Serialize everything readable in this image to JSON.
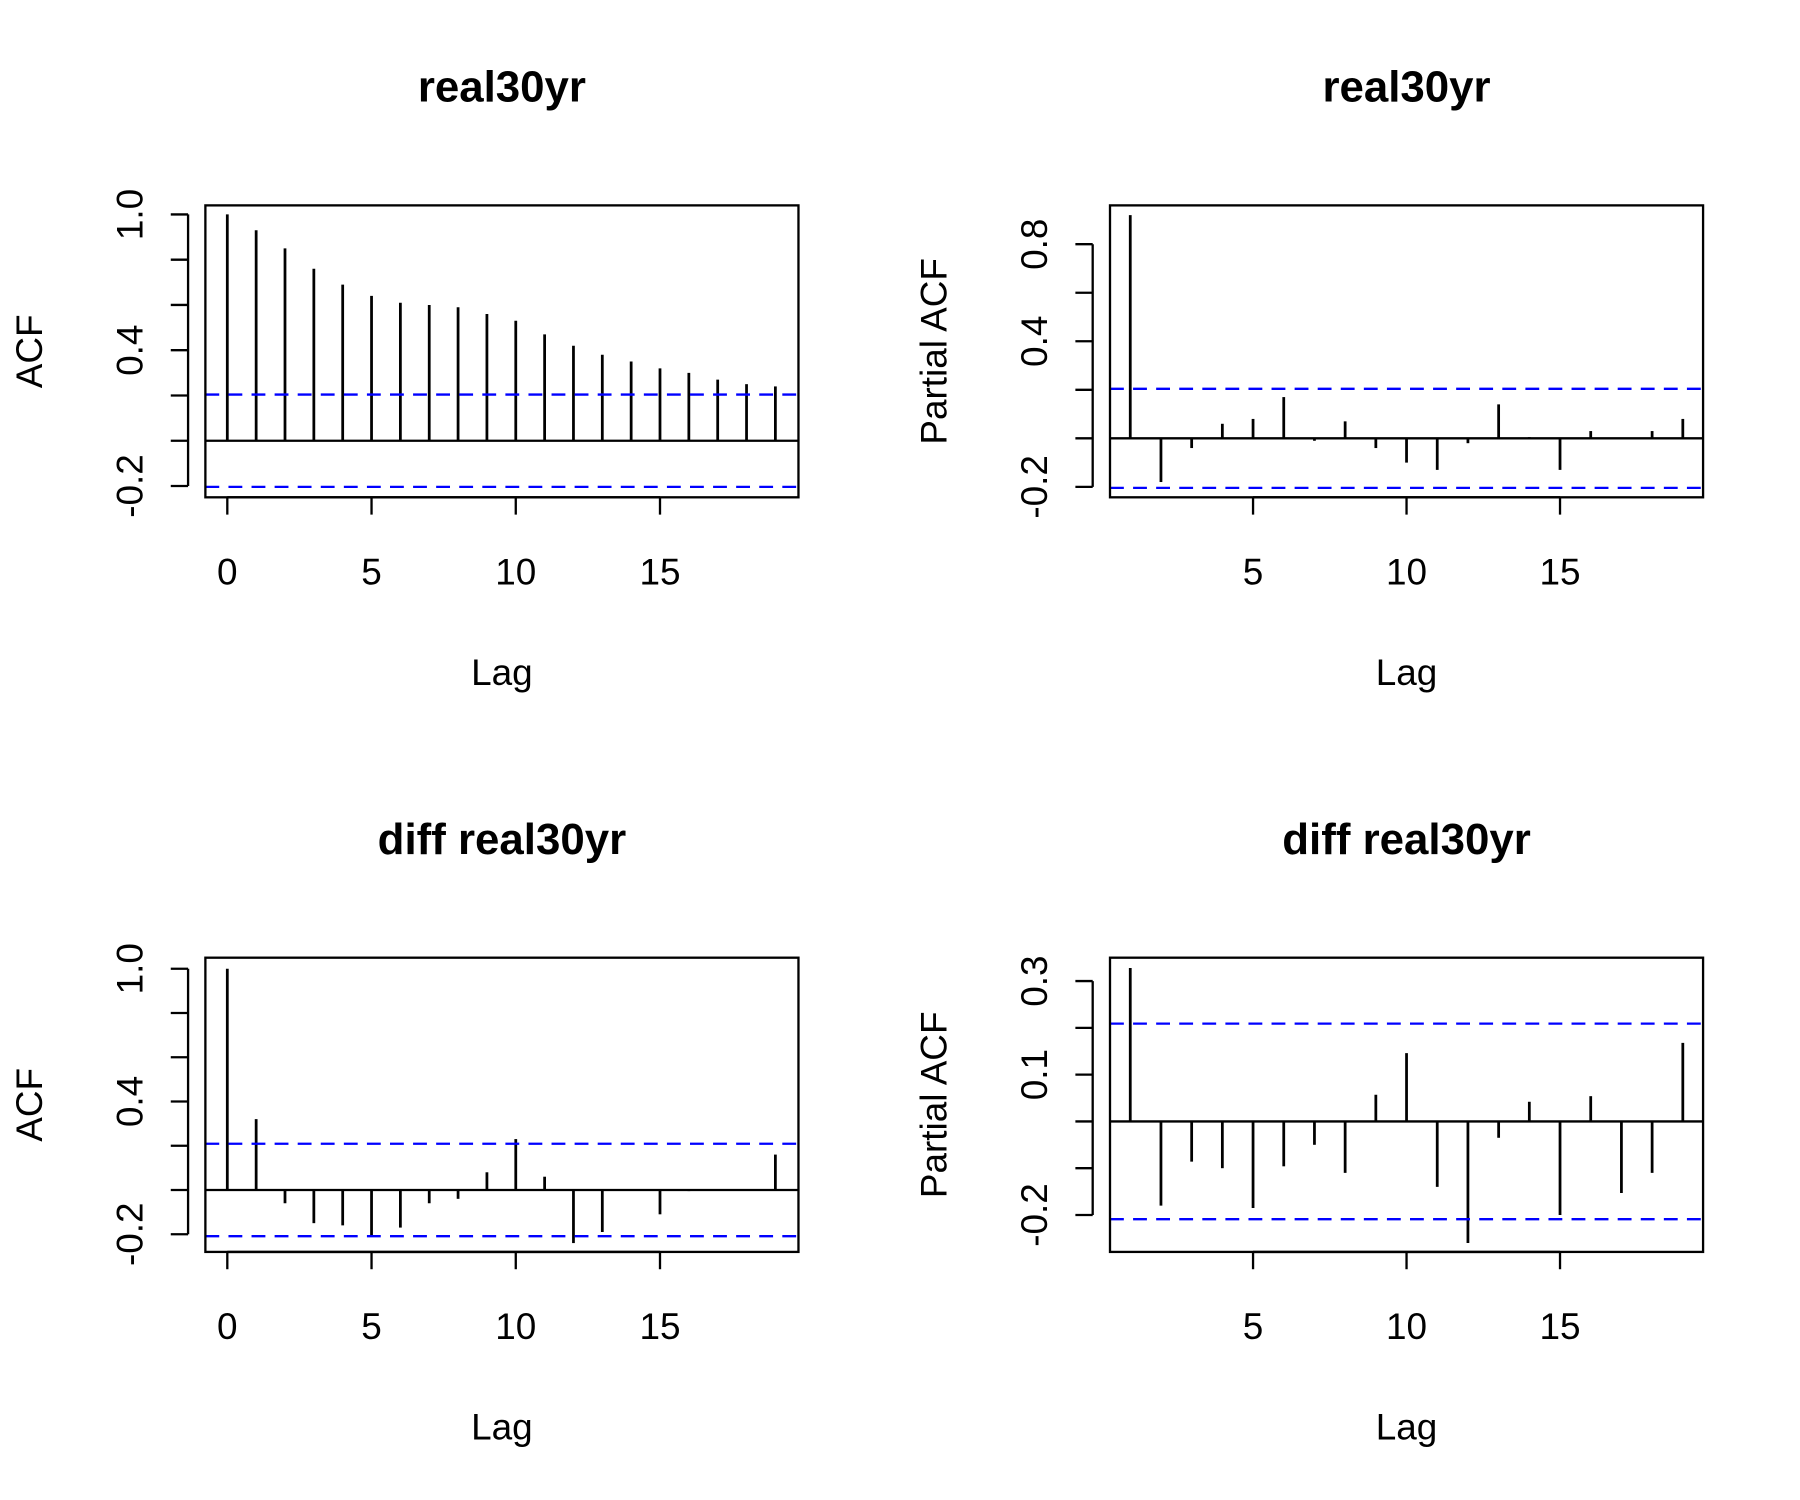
{
  "chart_data": [
    {
      "type": "acf",
      "title": "real30yr",
      "xlabel": "Lag",
      "ylabel": "ACF",
      "color": "#000000",
      "ci_color": "#0000ff",
      "x": [
        0,
        1,
        2,
        3,
        4,
        5,
        6,
        7,
        8,
        9,
        10,
        11,
        12,
        13,
        14,
        15,
        16,
        17,
        18,
        19
      ],
      "values": [
        1.0,
        0.93,
        0.85,
        0.76,
        0.69,
        0.64,
        0.61,
        0.6,
        0.59,
        0.56,
        0.53,
        0.47,
        0.42,
        0.38,
        0.35,
        0.32,
        0.3,
        0.27,
        0.25,
        0.24
      ],
      "ci": [
        -0.204,
        0.204
      ],
      "xlim": [
        -0.76,
        19.8
      ],
      "ylim": [
        -0.25,
        1.04
      ],
      "xticks": [
        0,
        5,
        10,
        15
      ],
      "yticks": [
        -0.2,
        {
          "value": 0,
          "label": null
        },
        {
          "value": 0.2,
          "label": null
        },
        0.4,
        {
          "value": 0.6,
          "label": null
        },
        {
          "value": 0.8,
          "label": null
        },
        {
          "value": 1,
          "label": "1.0"
        }
      ]
    },
    {
      "type": "acf",
      "title": "real30yr",
      "xlabel": "Lag",
      "ylabel": "Partial ACF",
      "color": "#000000",
      "ci_color": "#0000ff",
      "x": [
        1,
        2,
        3,
        4,
        5,
        6,
        7,
        8,
        9,
        10,
        11,
        12,
        13,
        14,
        15,
        16,
        17,
        18,
        19
      ],
      "values": [
        0.92,
        -0.18,
        -0.04,
        0.06,
        0.08,
        0.17,
        -0.01,
        0.07,
        -0.04,
        -0.1,
        -0.13,
        -0.02,
        0.14,
        0.005,
        -0.13,
        0.03,
        0.003,
        0.03,
        0.08
      ],
      "ci": [
        -0.204,
        0.204
      ],
      "xlim": [
        0.34,
        19.66
      ],
      "ylim": [
        -0.243,
        0.96
      ],
      "xticks": [
        5,
        10,
        15
      ],
      "yticks": [
        -0.2,
        {
          "value": 0,
          "label": null
        },
        {
          "value": 0.2,
          "label": null
        },
        0.4,
        {
          "value": 0.6,
          "label": null
        },
        0.8
      ]
    },
    {
      "type": "acf",
      "title": "diff real30yr",
      "xlabel": "Lag",
      "ylabel": "ACF",
      "color": "#000000",
      "ci_color": "#0000ff",
      "x": [
        0,
        1,
        2,
        3,
        4,
        5,
        6,
        7,
        8,
        9,
        10,
        11,
        12,
        13,
        14,
        15,
        16,
        17,
        18,
        19
      ],
      "values": [
        1.0,
        0.32,
        -0.06,
        -0.15,
        -0.16,
        -0.21,
        -0.17,
        -0.06,
        -0.04,
        0.08,
        0.23,
        0.06,
        -0.24,
        -0.19,
        0.003,
        -0.11,
        -0.005,
        0.002,
        0.002,
        0.16
      ],
      "ci": [
        -0.209,
        0.209
      ],
      "xlim": [
        -0.76,
        19.8
      ],
      "ylim": [
        -0.28,
        1.05
      ],
      "xticks": [
        0,
        5,
        10,
        15
      ],
      "yticks": [
        -0.2,
        {
          "value": 0,
          "label": null
        },
        {
          "value": 0.2,
          "label": null
        },
        0.4,
        {
          "value": 0.6,
          "label": null
        },
        {
          "value": 0.8,
          "label": null
        },
        {
          "value": 1,
          "label": "1.0"
        }
      ]
    },
    {
      "type": "acf",
      "title": "diff real30yr",
      "xlabel": "Lag",
      "ylabel": "Partial ACF",
      "color": "#000000",
      "ci_color": "#0000ff",
      "x": [
        1,
        2,
        3,
        4,
        5,
        6,
        7,
        8,
        9,
        10,
        11,
        12,
        13,
        14,
        15,
        16,
        17,
        18,
        19
      ],
      "values": [
        0.328,
        -0.18,
        -0.086,
        -0.1,
        -0.185,
        -0.096,
        -0.05,
        -0.11,
        0.057,
        0.146,
        -0.14,
        -0.26,
        -0.035,
        0.042,
        -0.2,
        0.054,
        -0.153,
        -0.11,
        0.168
      ],
      "ci": [
        -0.209,
        0.209
      ],
      "xlim": [
        0.34,
        19.66
      ],
      "ylim": [
        -0.279,
        0.35
      ],
      "xticks": [
        5,
        10,
        15
      ],
      "yticks": [
        -0.2,
        {
          "value": -0.1,
          "label": null
        },
        {
          "value": 0,
          "label": null
        },
        0.1,
        {
          "value": 0.2,
          "label": null
        },
        0.3
      ]
    }
  ]
}
